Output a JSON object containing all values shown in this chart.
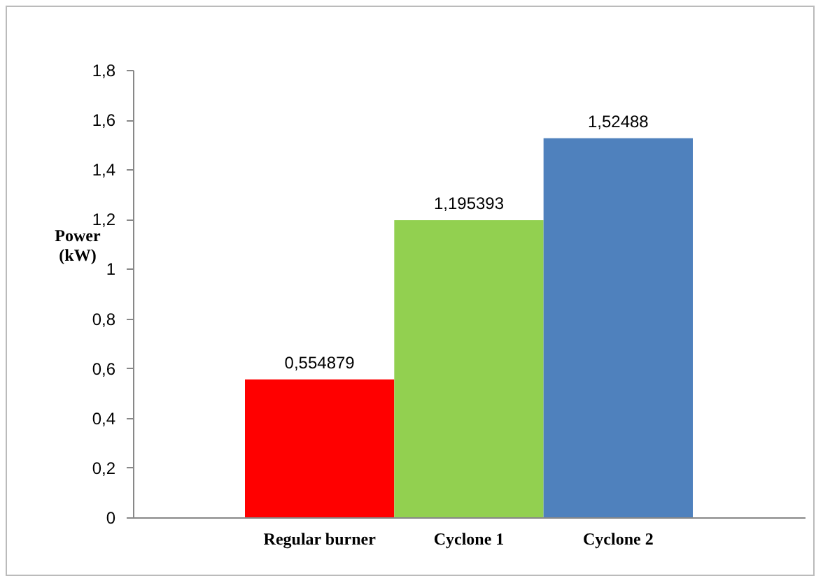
{
  "chart_data": {
    "type": "bar",
    "ylabel": "Power (kW)",
    "categories": [
      "Regular burner",
      "Cyclone 1",
      "Cyclone 2"
    ],
    "values": [
      0.554879,
      1.195393,
      1.52488
    ],
    "colors": [
      "#ff0000",
      "#92d050",
      "#4f81bd"
    ],
    "value_labels": [
      "0,554879",
      "1,195393",
      "1,52488"
    ],
    "ylim": [
      0,
      1.8
    ],
    "yticks": [
      {
        "value": 0,
        "label": "0"
      },
      {
        "value": 0.2,
        "label": "0,2"
      },
      {
        "value": 0.4,
        "label": "0,4"
      },
      {
        "value": 0.6,
        "label": "0,6"
      },
      {
        "value": 0.8,
        "label": "0,8"
      },
      {
        "value": 1,
        "label": "1"
      },
      {
        "value": 1.2,
        "label": "1,2"
      },
      {
        "value": 1.4,
        "label": "1,4"
      },
      {
        "value": 1.6,
        "label": "1,6"
      },
      {
        "value": 1.8,
        "label": "1,8"
      }
    ],
    "grid": false
  }
}
